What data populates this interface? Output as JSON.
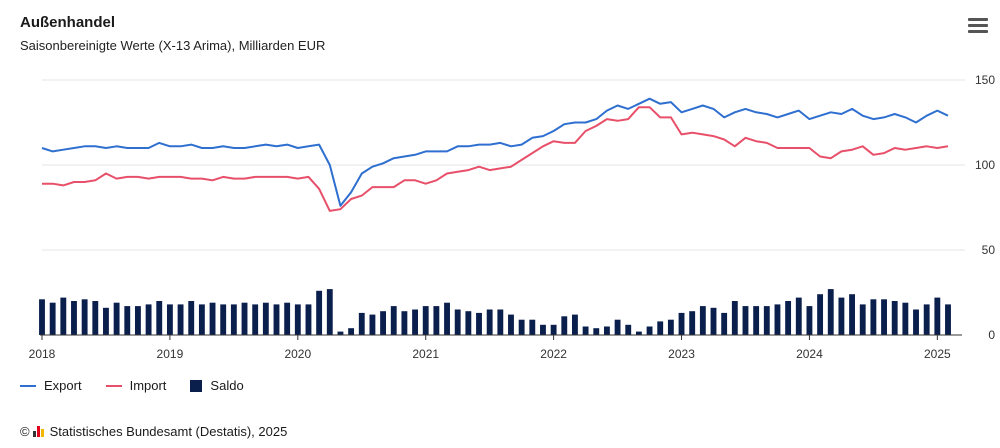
{
  "header": {
    "title": "Außenhandel",
    "subtitle": "Saisonbereinigte Werte (X-13 Arima), Milliarden EUR",
    "menu_icon": "hamburger-menu-icon"
  },
  "colors": {
    "export": "#2e6fd0",
    "import": "#e8506a",
    "saldo": "#0b1f4d"
  },
  "legend": [
    {
      "label": "Export",
      "kind": "line",
      "color": "#2e6fd0"
    },
    {
      "label": "Import",
      "kind": "line",
      "color": "#e8506a"
    },
    {
      "label": "Saldo",
      "kind": "bar",
      "color": "#0b1f4d"
    }
  ],
  "footer": {
    "copyright": "©",
    "source": "Statistisches Bundesamt (Destatis), 2025"
  },
  "chart_data": {
    "type": "line",
    "x_start": "2018-01",
    "x_end": "2025-01",
    "x_ticks": [
      "2018",
      "2019",
      "2020",
      "2021",
      "2022",
      "2023",
      "2024",
      "2025"
    ],
    "y_ticks": [
      0,
      50,
      100,
      150
    ],
    "ylim": [
      0,
      150
    ],
    "grid": true,
    "legend_position": "bottom-left",
    "series": [
      {
        "name": "Export",
        "type": "line",
        "values": [
          110,
          108,
          109,
          110,
          111,
          111,
          110,
          111,
          110,
          110,
          110,
          113,
          111,
          111,
          112,
          110,
          110,
          111,
          110,
          110,
          111,
          112,
          111,
          112,
          110,
          111,
          112,
          100,
          76,
          84,
          95,
          99,
          101,
          104,
          105,
          106,
          108,
          108,
          108,
          111,
          111,
          112,
          112,
          113,
          111,
          112,
          116,
          117,
          120,
          124,
          125,
          125,
          127,
          132,
          135,
          133,
          136,
          139,
          136,
          137,
          131,
          133,
          135,
          133,
          128,
          131,
          133,
          131,
          130,
          128,
          130,
          132,
          127,
          129,
          131,
          130,
          133,
          129,
          127,
          128,
          130,
          128,
          125,
          129,
          132,
          129
        ]
      },
      {
        "name": "Import",
        "type": "line",
        "values": [
          89,
          89,
          88,
          90,
          90,
          91,
          95,
          92,
          93,
          93,
          92,
          93,
          93,
          93,
          92,
          92,
          91,
          93,
          92,
          92,
          93,
          93,
          93,
          93,
          92,
          93,
          86,
          73,
          74,
          80,
          82,
          87,
          87,
          87,
          91,
          91,
          89,
          91,
          95,
          96,
          97,
          99,
          97,
          98,
          99,
          103,
          107,
          111,
          114,
          113,
          113,
          120,
          123,
          127,
          126,
          127,
          134,
          134,
          128,
          128,
          118,
          119,
          118,
          117,
          115,
          111,
          116,
          114,
          113,
          110,
          110,
          110,
          110,
          105,
          104,
          108,
          109,
          111,
          106,
          107,
          110,
          109,
          110,
          111,
          110,
          111
        ]
      },
      {
        "name": "Saldo",
        "type": "bar",
        "values": [
          21,
          19,
          22,
          20,
          21,
          20,
          16,
          19,
          17,
          17,
          18,
          20,
          18,
          18,
          20,
          18,
          19,
          18,
          18,
          19,
          18,
          19,
          18,
          19,
          18,
          18,
          26,
          27,
          2,
          4,
          13,
          12,
          14,
          17,
          14,
          15,
          17,
          17,
          19,
          15,
          14,
          13,
          15,
          15,
          12,
          9,
          9,
          6,
          6,
          11,
          12,
          5,
          4,
          5,
          9,
          6,
          2,
          5,
          8,
          9,
          13,
          14,
          17,
          16,
          13,
          20,
          17,
          17,
          17,
          18,
          20,
          22,
          17,
          24,
          27,
          22,
          24,
          18,
          21,
          21,
          20,
          19,
          15,
          18,
          22,
          18
        ]
      }
    ]
  }
}
